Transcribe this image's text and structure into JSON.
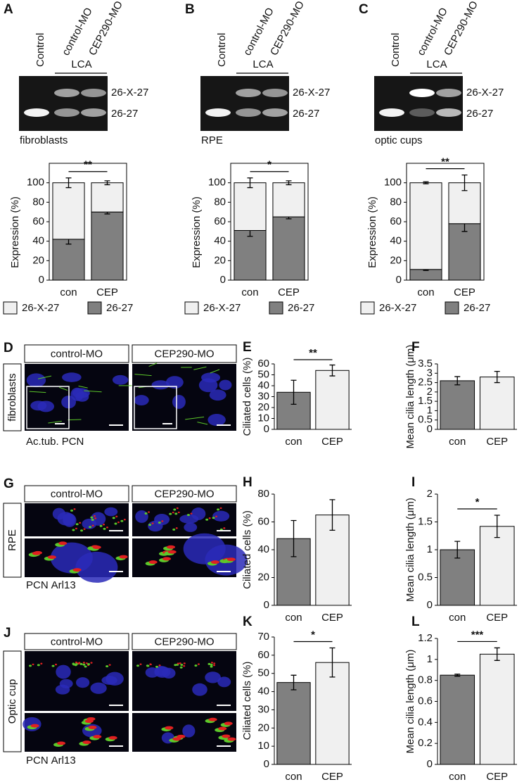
{
  "gels": [
    {
      "panel": "A",
      "lanes": [
        "Control",
        "control-MO",
        "CEP290-MO"
      ],
      "group": "LCA",
      "bands": [
        "26-X-27",
        "26-27"
      ],
      "sample": "fibroblasts"
    },
    {
      "panel": "B",
      "lanes": [
        "Control",
        "control-MO",
        "CEP290-MO"
      ],
      "group": "LCA",
      "bands": [
        "26-X-27",
        "26-27"
      ],
      "sample": "RPE"
    },
    {
      "panel": "C",
      "lanes": [
        "Control",
        "control-MO",
        "CEP290-MO"
      ],
      "group": "LCA",
      "bands": [
        "26-X-27",
        "26-27"
      ],
      "sample": "optic cups"
    }
  ],
  "micrographs": [
    {
      "panel": "D",
      "columns": [
        "control-MO",
        "CEP290-MO"
      ],
      "tissue": "fibroblasts",
      "stains": [
        {
          "name": "Ac.tub.",
          "color": "#5cc82a"
        },
        {
          "name": "PCN",
          "color": "#e02020"
        }
      ]
    },
    {
      "panel": "G",
      "columns": [
        "control-MO",
        "CEP290-MO"
      ],
      "tissue": "RPE",
      "stains": [
        {
          "name": "PCN",
          "color": "#5cc82a"
        },
        {
          "name": "Arl13",
          "color": "#e02020"
        }
      ]
    },
    {
      "panel": "J",
      "columns": [
        "control-MO",
        "CEP290-MO"
      ],
      "tissue": "Optic cup",
      "stains": [
        {
          "name": "PCN",
          "color": "#5cc82a"
        },
        {
          "name": "Arl13",
          "color": "#e02020"
        }
      ]
    }
  ],
  "chart_data": [
    {
      "type": "stacked_bar",
      "ylabel": "Expression (%)",
      "categories": [
        "con",
        "CEP"
      ],
      "significance": "**",
      "series": [
        {
          "name": "26-X-27",
          "color": "#f0f0f0",
          "values": [
            58,
            30
          ],
          "errors": [
            5,
            2
          ]
        },
        {
          "name": "26-27",
          "color": "#808080",
          "values": [
            42,
            70
          ],
          "errors": [
            5,
            2
          ]
        }
      ],
      "ylim": [
        0,
        120
      ],
      "yticks": [
        0,
        20,
        40,
        60,
        80,
        100
      ]
    },
    {
      "type": "stacked_bar",
      "ylabel": "Expression (%)",
      "categories": [
        "con",
        "CEP"
      ],
      "significance": "*",
      "series": [
        {
          "name": "26-X-27",
          "color": "#f0f0f0",
          "values": [
            49,
            35
          ],
          "errors": [
            5,
            2
          ]
        },
        {
          "name": "26-27",
          "color": "#808080",
          "values": [
            51,
            65
          ],
          "errors": [
            6,
            2
          ]
        }
      ],
      "ylim": [
        0,
        120
      ],
      "yticks": [
        0,
        20,
        40,
        60,
        80,
        100
      ]
    },
    {
      "type": "stacked_bar",
      "ylabel": "Expression (%)",
      "categories": [
        "con",
        "CEP"
      ],
      "significance": "**",
      "series": [
        {
          "name": "26-X-27",
          "color": "#f0f0f0",
          "values": [
            89,
            42
          ],
          "errors": [
            1,
            8
          ]
        },
        {
          "name": "26-27",
          "color": "#808080",
          "values": [
            11,
            58
          ],
          "errors": [
            1,
            8
          ]
        }
      ],
      "ylim": [
        0,
        120
      ],
      "yticks": [
        0,
        20,
        40,
        60,
        80,
        100
      ]
    },
    {
      "type": "bar",
      "panel": "E",
      "ylabel": "Ciliated cells (%)",
      "categories": [
        "con",
        "CEP"
      ],
      "values": [
        34,
        54
      ],
      "errors": [
        11,
        5
      ],
      "colors": [
        "#808080",
        "#f0f0f0"
      ],
      "significance": "**",
      "ylim": [
        0,
        60
      ],
      "yticks": [
        0,
        10,
        20,
        30,
        40,
        50,
        60
      ]
    },
    {
      "type": "bar",
      "panel": "F",
      "ylabel": "Mean cilia length (μm)",
      "categories": [
        "con",
        "CEP"
      ],
      "values": [
        2.6,
        2.8
      ],
      "errors": [
        0.22,
        0.3
      ],
      "colors": [
        "#808080",
        "#f0f0f0"
      ],
      "ylim": [
        0,
        3.5
      ],
      "yticks": [
        0,
        0.5,
        1,
        1.5,
        2,
        2.5,
        3,
        3.5
      ]
    },
    {
      "type": "bar",
      "panel": "H",
      "ylabel": "Ciliated cells (%)",
      "categories": [
        "con",
        "CEP"
      ],
      "values": [
        48,
        65
      ],
      "errors": [
        13,
        11
      ],
      "colors": [
        "#808080",
        "#f0f0f0"
      ],
      "ylim": [
        0,
        80
      ],
      "yticks": [
        0,
        20,
        40,
        60,
        80
      ]
    },
    {
      "type": "bar",
      "panel": "I",
      "ylabel": "Mean cilia length (μm)",
      "categories": [
        "con",
        "CEP"
      ],
      "values": [
        1.0,
        1.42
      ],
      "errors": [
        0.15,
        0.2
      ],
      "colors": [
        "#808080",
        "#f0f0f0"
      ],
      "significance": "*",
      "ylim": [
        0,
        2
      ],
      "yticks": [
        0,
        0.5,
        1,
        1.5,
        2
      ]
    },
    {
      "type": "bar",
      "panel": "K",
      "ylabel": "Ciliated cells (%)",
      "categories": [
        "con",
        "CEP"
      ],
      "values": [
        45,
        56
      ],
      "errors": [
        4,
        8
      ],
      "colors": [
        "#808080",
        "#f0f0f0"
      ],
      "significance": "*",
      "ylim": [
        0,
        70
      ],
      "yticks": [
        0,
        10,
        20,
        30,
        40,
        50,
        60,
        70
      ]
    },
    {
      "type": "bar",
      "panel": "L",
      "ylabel": "Mean cilia length (μm)",
      "categories": [
        "con",
        "CEP"
      ],
      "values": [
        0.85,
        1.05
      ],
      "errors": [
        0.01,
        0.06
      ],
      "colors": [
        "#808080",
        "#f0f0f0"
      ],
      "significance": "***",
      "ylim": [
        0,
        1.2
      ],
      "yticks": [
        0,
        0.2,
        0.4,
        0.6,
        0.8,
        1,
        1.2
      ]
    }
  ]
}
